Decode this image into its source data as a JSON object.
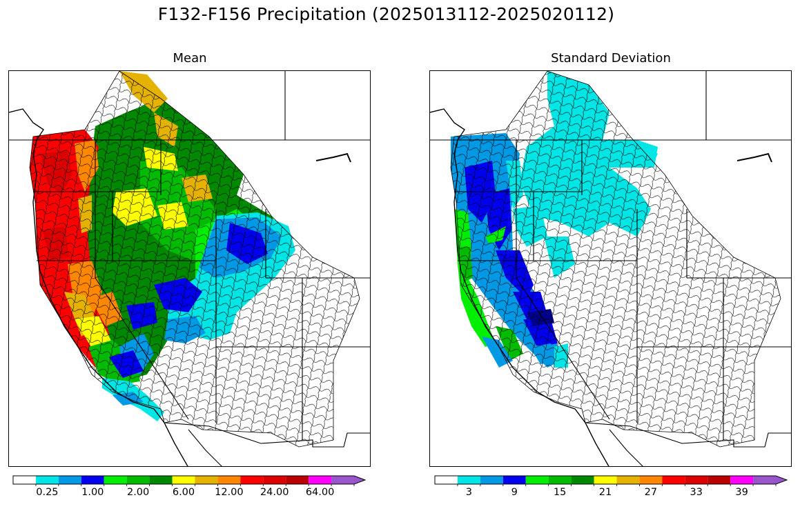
{
  "figure": {
    "title": "F132-F156 Precipitation (2025013112-2025020112)"
  },
  "panels": [
    {
      "title": "Mean",
      "colorbar": {
        "ticks": [
          "0.25",
          "1.00",
          "2.00",
          "6.00",
          "12.00",
          "24.00",
          "64.00"
        ],
        "tick_bins": [
          1,
          3,
          5,
          7,
          9,
          11,
          13
        ],
        "extend": "max"
      }
    },
    {
      "title": "Standard Deviation",
      "colorbar": {
        "ticks": [
          "3",
          "9",
          "15",
          "21",
          "27",
          "33",
          "39"
        ],
        "tick_bins": [
          1,
          3,
          5,
          7,
          9,
          11,
          13
        ],
        "extend": "max"
      }
    }
  ],
  "colormap": [
    "#ffffff",
    "#00e5e5",
    "#0099e5",
    "#0000ee",
    "#00ee00",
    "#00bb00",
    "#008800",
    "#ffff00",
    "#e5b200",
    "#ff8800",
    "#ff0000",
    "#dd0000",
    "#bb0000",
    "#ff00ff",
    "#9955cc"
  ],
  "map": {
    "region": "western United States",
    "boundaries": [
      "state-borders",
      "coastline",
      "canada-border",
      "mexico-border",
      "river-basins"
    ]
  }
}
